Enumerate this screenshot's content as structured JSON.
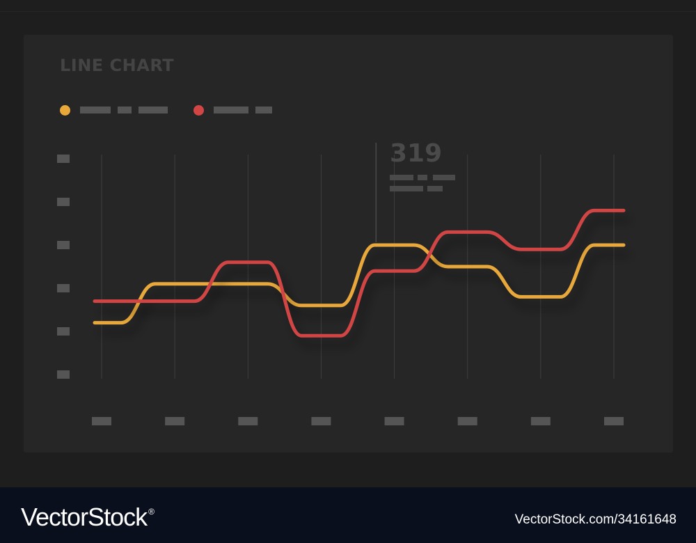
{
  "title": "LINE CHART",
  "annotation": {
    "value": "319"
  },
  "colors": {
    "series_a": "#e8a83a",
    "series_b": "#d24545",
    "background": "#262626",
    "axis_placeholder": "#555555"
  },
  "legend": [
    {
      "color": "#e8a83a"
    },
    {
      "color": "#d24545"
    }
  ],
  "chart_data": {
    "type": "line",
    "x": [
      0,
      1,
      2,
      3,
      4,
      5,
      6,
      7
    ],
    "ylim": [
      0,
      5
    ],
    "grid": "vertical",
    "legend_placement": "top-left",
    "series": [
      {
        "color": "#e8a83a",
        "values": [
          1.2,
          2.1,
          2.1,
          1.6,
          3.0,
          2.5,
          1.8,
          3.0
        ]
      },
      {
        "color": "#d24545",
        "values": [
          1.7,
          1.7,
          2.6,
          0.9,
          2.4,
          3.3,
          2.9,
          3.8
        ]
      }
    ],
    "annotation": {
      "x": 3.75,
      "label": "319"
    }
  },
  "watermark": {
    "brand": "VectorStock",
    "registered": "®",
    "id": "VectorStock.com/34161648"
  }
}
